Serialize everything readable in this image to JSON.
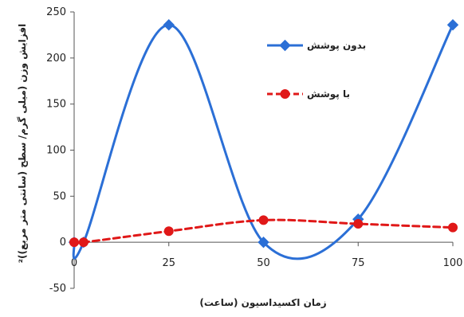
{
  "chart_data": {
    "type": "line",
    "title": "",
    "xlabel": "زمان اکسیداسیون (ساعت)",
    "ylabel": "افزایش وزن (میلی گرم/ سطح (سانتی متر مربع))²",
    "xlim": [
      0,
      100
    ],
    "ylim": [
      -50,
      250
    ],
    "x_ticks": [
      0,
      25,
      50,
      75,
      100
    ],
    "y_ticks": [
      -50,
      0,
      50,
      100,
      150,
      200,
      250
    ],
    "grid": false,
    "legend_position": "top-right",
    "smooth": true,
    "series": [
      {
        "name": "بدون پوشش",
        "color": "#2b6fd6",
        "marker": "diamond",
        "line_style": "solid",
        "x": [
          0,
          2.5,
          25,
          50,
          75,
          100
        ],
        "y": [
          0,
          0,
          236,
          0,
          25,
          236
        ]
      },
      {
        "name": "با پوشش",
        "color": "#e01818",
        "marker": "circle",
        "line_style": "dashed",
        "x": [
          0,
          2.5,
          25,
          50,
          75,
          100
        ],
        "y": [
          0,
          0,
          12,
          24,
          20,
          16
        ]
      }
    ]
  }
}
